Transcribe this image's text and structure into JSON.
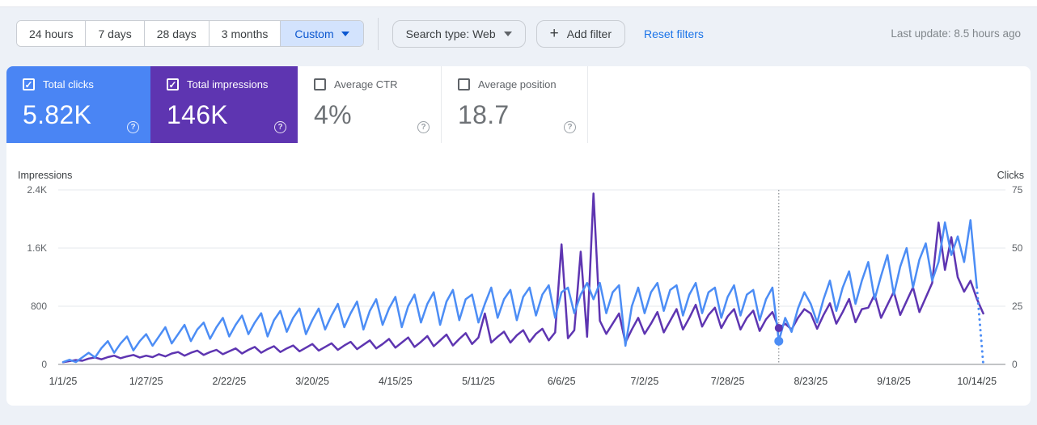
{
  "toolbar": {
    "date_ranges": [
      {
        "label": "24 hours",
        "selected": false
      },
      {
        "label": "7 days",
        "selected": false
      },
      {
        "label": "28 days",
        "selected": false
      },
      {
        "label": "3 months",
        "selected": false
      },
      {
        "label": "Custom",
        "selected": true
      }
    ],
    "search_type_label": "Search type: Web",
    "add_filter_label": "Add filter",
    "reset_filters_label": "Reset filters",
    "last_update": "Last update: 8.5 hours ago"
  },
  "metric_cards": [
    {
      "label": "Total clicks",
      "value": "5.82K",
      "checked": true,
      "check_glyph": "✓",
      "color": "#4a85f4"
    },
    {
      "label": "Total impressions",
      "value": "146K",
      "checked": true,
      "check_glyph": "✓",
      "color": "#5e35b1"
    },
    {
      "label": "Average CTR",
      "value": "4%",
      "checked": false,
      "check_glyph": "",
      "color": "#ffffff"
    },
    {
      "label": "Average position",
      "value": "18.7",
      "checked": false,
      "check_glyph": "",
      "color": "#ffffff"
    }
  ],
  "help_icon_glyph": "?",
  "chart_data": {
    "type": "line",
    "left_axis": {
      "label": "Impressions",
      "max": 2400,
      "ticks": [
        {
          "label": "2.4K",
          "value": 2400
        },
        {
          "label": "1.6K",
          "value": 1600
        },
        {
          "label": "800",
          "value": 800
        },
        {
          "label": "0",
          "value": 0
        }
      ]
    },
    "right_axis": {
      "label": "Clicks",
      "max": 75,
      "ticks": [
        {
          "label": "75",
          "value": 75
        },
        {
          "label": "50",
          "value": 50
        },
        {
          "label": "25",
          "value": 25
        },
        {
          "label": "0",
          "value": 0
        }
      ]
    },
    "x_tick_labels": [
      "1/1/25",
      "1/27/25",
      "2/22/25",
      "3/20/25",
      "4/15/25",
      "5/11/25",
      "6/6/25",
      "7/2/25",
      "7/28/25",
      "8/23/25",
      "9/18/25",
      "10/14/25"
    ],
    "x_tick_interval_days": 26,
    "sample_step_days": 2,
    "total_days": 288,
    "grid": true,
    "legend_position": "none",
    "series": [
      {
        "name": "Total clicks",
        "axis": "right",
        "color": "#4c8df5",
        "dashed_tail": true,
        "values": [
          1,
          2,
          1,
          3,
          5,
          3,
          7,
          10,
          5,
          9,
          12,
          6,
          10,
          13,
          8,
          12,
          16,
          9,
          13,
          17,
          10,
          15,
          18,
          11,
          16,
          20,
          12,
          17,
          21,
          13,
          18,
          22,
          12,
          19,
          23,
          14,
          20,
          24,
          13,
          19,
          24,
          15,
          21,
          26,
          16,
          22,
          27,
          15,
          23,
          28,
          17,
          24,
          29,
          16,
          25,
          30,
          18,
          26,
          31,
          17,
          27,
          32,
          19,
          28,
          30,
          18,
          26,
          33,
          20,
          28,
          32,
          19,
          29,
          33,
          21,
          30,
          34,
          20,
          31,
          33,
          22,
          30,
          35,
          28,
          35,
          22,
          31,
          34,
          8,
          25,
          33,
          22,
          31,
          35,
          23,
          32,
          34,
          21,
          30,
          35,
          22,
          31,
          33,
          20,
          29,
          34,
          21,
          30,
          32,
          19,
          28,
          33,
          10,
          20,
          14,
          24,
          31,
          26,
          18,
          28,
          36,
          23,
          33,
          40,
          26,
          36,
          44,
          28,
          38,
          47,
          30,
          42,
          50,
          33,
          45,
          52,
          36,
          44,
          61,
          47,
          55,
          44,
          62,
          33,
          0
        ]
      },
      {
        "name": "Total impressions",
        "axis": "left",
        "color": "#5e35b1",
        "dashed_tail": false,
        "values": [
          30,
          45,
          60,
          50,
          80,
          95,
          70,
          100,
          120,
          85,
          110,
          130,
          95,
          120,
          100,
          140,
          110,
          150,
          170,
          120,
          160,
          190,
          130,
          170,
          200,
          140,
          180,
          220,
          150,
          200,
          240,
          160,
          210,
          250,
          170,
          220,
          260,
          180,
          230,
          280,
          190,
          240,
          290,
          200,
          260,
          310,
          210,
          270,
          330,
          220,
          280,
          350,
          230,
          300,
          370,
          240,
          310,
          390,
          250,
          330,
          410,
          260,
          350,
          430,
          280,
          370,
          700,
          300,
          380,
          450,
          300,
          400,
          470,
          310,
          420,
          490,
          330,
          440,
          1650,
          360,
          470,
          1550,
          380,
          2350,
          600,
          420,
          560,
          700,
          300,
          480,
          640,
          420,
          560,
          720,
          440,
          600,
          760,
          480,
          640,
          820,
          520,
          680,
          780,
          500,
          660,
          760,
          480,
          640,
          740,
          460,
          620,
          720,
          500,
          560,
          480,
          640,
          760,
          700,
          490,
          680,
          840,
          560,
          720,
          900,
          580,
          760,
          780,
          960,
          640,
          820,
          1000,
          680,
          870,
          1060,
          720,
          920,
          1120,
          1950,
          1300,
          1750,
          1200,
          1000,
          1150,
          900,
          700
        ]
      }
    ],
    "hover_marker": {
      "day": 224,
      "clicks": 10,
      "impressions": 500
    }
  }
}
